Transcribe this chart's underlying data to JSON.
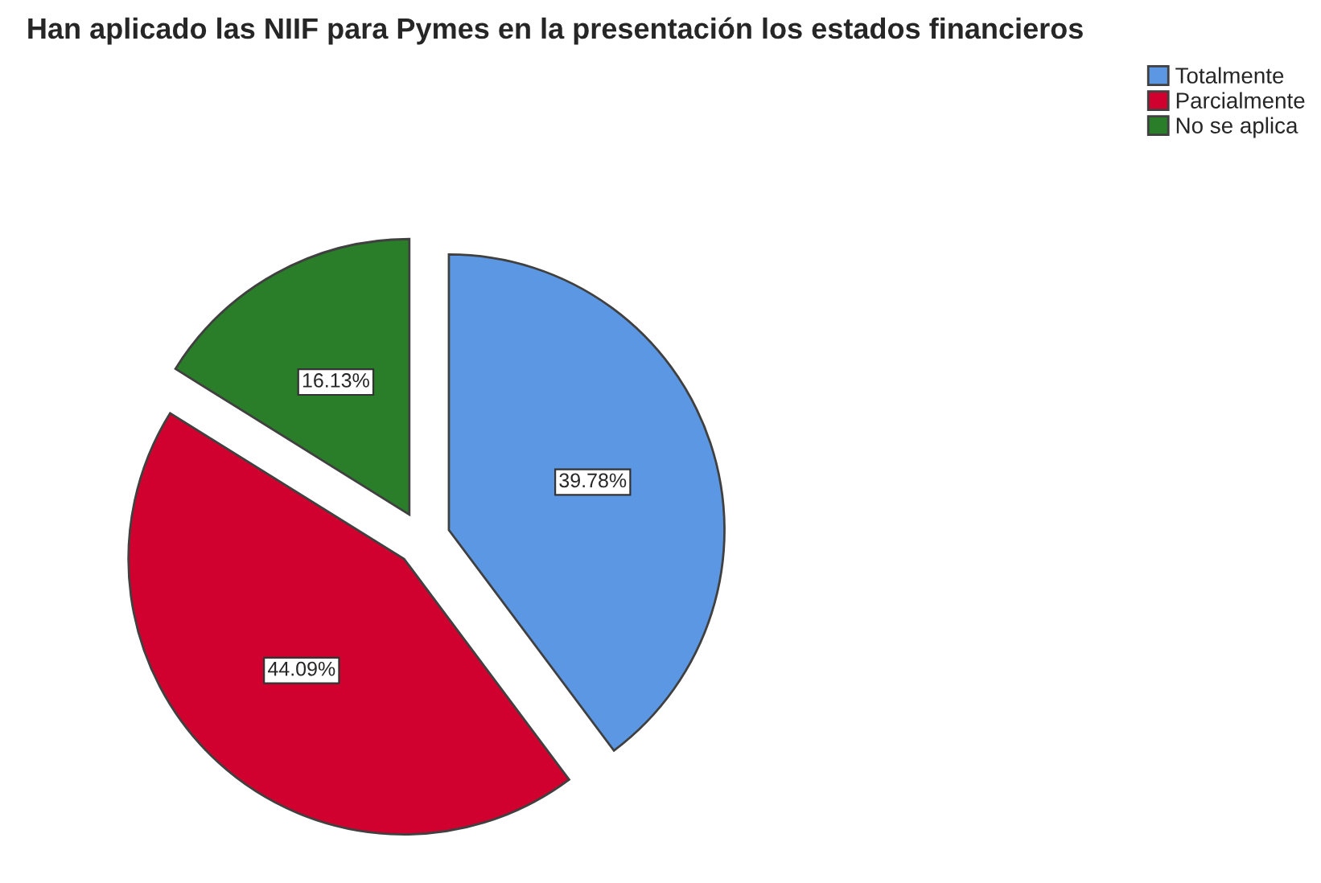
{
  "chart_data": {
    "type": "pie",
    "title": "Han aplicado las NIIF para Pymes en la presentación los estados financieros",
    "categories": [
      "Totalmente",
      "Parcialmente",
      "No se aplica"
    ],
    "values": [
      39.78,
      44.09,
      16.13
    ],
    "colors": [
      "#5b97e3",
      "#d0002f",
      "#2a7e29"
    ],
    "value_labels": [
      "39.78%",
      "44.09%",
      "16.13%"
    ],
    "legend": "top right"
  }
}
